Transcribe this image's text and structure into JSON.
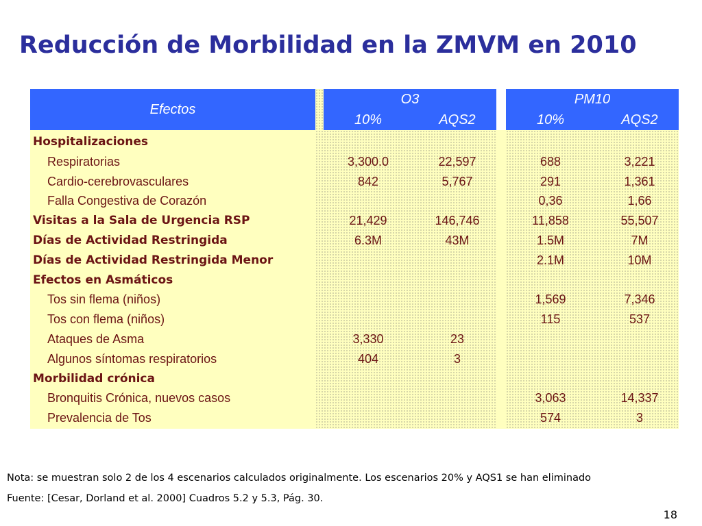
{
  "title": "Reducción de Morbilidad en la ZMVM en 2010",
  "table": {
    "header_effects": "Efectos",
    "group_o3": "O3",
    "group_pm10": "PM10",
    "sub_10": "10%",
    "sub_aqs2": "AQS2",
    "rows": [
      {
        "label": "Hospitalizaciones",
        "type": "head",
        "o3_10": "",
        "o3_aqs2": "",
        "pm10_10": "",
        "pm10_aqs2": ""
      },
      {
        "label": "Respiratorias",
        "type": "sub",
        "o3_10": "3,300.0",
        "o3_aqs2": "22,597",
        "pm10_10": "688",
        "pm10_aqs2": "3,221"
      },
      {
        "label": "Cardio-cerebrovasculares",
        "type": "sub",
        "o3_10": "842",
        "o3_aqs2": "5,767",
        "pm10_10": "291",
        "pm10_aqs2": "1,361"
      },
      {
        "label": "Falla Congestiva de Corazón",
        "type": "sub",
        "o3_10": "",
        "o3_aqs2": "",
        "pm10_10": "0,36",
        "pm10_aqs2": "1,66"
      },
      {
        "label": "Visitas a la Sala de Urgencia RSP",
        "type": "head",
        "o3_10": "21,429",
        "o3_aqs2": "146,746",
        "pm10_10": "11,858",
        "pm10_aqs2": "55,507"
      },
      {
        "label": "Días de Actividad Restringida",
        "type": "head",
        "o3_10": "6.3M",
        "o3_aqs2": "43M",
        "pm10_10": "1.5M",
        "pm10_aqs2": "7M"
      },
      {
        "label": "Días de Actividad Restringida Menor",
        "type": "head",
        "o3_10": "",
        "o3_aqs2": "",
        "pm10_10": "2.1M",
        "pm10_aqs2": "10M"
      },
      {
        "label": "Efectos en Asmáticos",
        "type": "head",
        "o3_10": "",
        "o3_aqs2": "",
        "pm10_10": "",
        "pm10_aqs2": ""
      },
      {
        "label": "Tos sin flema (niños)",
        "type": "sub",
        "o3_10": "",
        "o3_aqs2": "",
        "pm10_10": "1,569",
        "pm10_aqs2": "7,346"
      },
      {
        "label": "Tos con flema (niños)",
        "type": "sub",
        "o3_10": "",
        "o3_aqs2": "",
        "pm10_10": "115",
        "pm10_aqs2": "537"
      },
      {
        "label": "Ataques de Asma",
        "type": "sub",
        "o3_10": "3,330",
        "o3_aqs2": "23",
        "pm10_10": "",
        "pm10_aqs2": ""
      },
      {
        "label": "Algunos síntomas respiratorios",
        "type": "sub",
        "o3_10": "404",
        "o3_aqs2": "3",
        "pm10_10": "",
        "pm10_aqs2": ""
      },
      {
        "label": "Morbilidad crónica",
        "type": "head",
        "o3_10": "",
        "o3_aqs2": "",
        "pm10_10": "",
        "pm10_aqs2": ""
      },
      {
        "label": "Bronquitis Crónica, nuevos casos",
        "type": "sub",
        "o3_10": "",
        "o3_aqs2": "",
        "pm10_10": "3,063",
        "pm10_aqs2": "14,337"
      },
      {
        "label": "Prevalencia de Tos",
        "type": "sub",
        "o3_10": "",
        "o3_aqs2": "",
        "pm10_10": "574",
        "pm10_aqs2": "3"
      }
    ]
  },
  "note": "Nota: se muestran solo 2 de los 4 escenarios calculados originalmente. Los escenarios 20% y AQS1 se han eliminado",
  "source": "Fuente: [Cesar, Dorland et al. 2000] Cuadros 5.2 y 5.3, Pág. 30.",
  "page_number": "18",
  "colors": {
    "title": "#2B2E9C",
    "header_bg": "#3366FF",
    "body_bg": "#FFFFBF",
    "body_text": "#6B1414"
  }
}
